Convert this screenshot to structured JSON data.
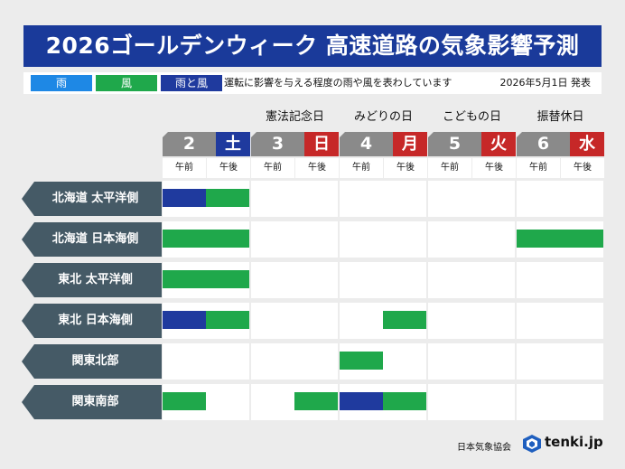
{
  "title": "2026ゴールデンウィーク 高速道路の気象影響予測",
  "legend": {
    "items": [
      {
        "label": "雨",
        "color": "#1e88e5"
      },
      {
        "label": "風",
        "color": "#1fa84b"
      },
      {
        "label": "雨と風",
        "color": "#1f3a9e"
      }
    ],
    "description": "運転に影響を与える程度の雨や風を表わしています",
    "issued": "2026年5月1日 発表"
  },
  "days": [
    {
      "num": "2",
      "weekday": "土",
      "weekday_color": "#1f3a9e",
      "holiday": "",
      "am": "午前",
      "pm": "午後"
    },
    {
      "num": "3",
      "weekday": "日",
      "weekday_color": "#c62828",
      "holiday": "憲法記念日",
      "am": "午前",
      "pm": "午後"
    },
    {
      "num": "4",
      "weekday": "月",
      "weekday_color": "#c62828",
      "holiday": "みどりの日",
      "am": "午前",
      "pm": "午後"
    },
    {
      "num": "5",
      "weekday": "火",
      "weekday_color": "#c62828",
      "holiday": "こどもの日",
      "am": "午前",
      "pm": "午後"
    },
    {
      "num": "6",
      "weekday": "水",
      "weekday_color": "#c62828",
      "holiday": "振替休日",
      "am": "午前",
      "pm": "午後"
    }
  ],
  "rows": [
    {
      "label": "北海道 太平洋側",
      "segments": [
        "rainwind",
        "wind",
        "",
        "",
        "",
        "",
        "",
        "",
        "",
        ""
      ]
    },
    {
      "label": "北海道 日本海側",
      "segments": [
        "wind",
        "wind",
        "",
        "",
        "",
        "",
        "",
        "",
        "wind",
        "wind"
      ]
    },
    {
      "label": "東北 太平洋側",
      "segments": [
        "wind",
        "wind",
        "",
        "",
        "",
        "",
        "",
        "",
        "",
        ""
      ]
    },
    {
      "label": "東北 日本海側",
      "segments": [
        "rainwind",
        "wind",
        "",
        "",
        "",
        "wind",
        "",
        "",
        "",
        ""
      ]
    },
    {
      "label": "関東北部",
      "segments": [
        "",
        "",
        "",
        "",
        "wind",
        "",
        "",
        "",
        "",
        ""
      ]
    },
    {
      "label": "関東南部",
      "segments": [
        "wind",
        "",
        "",
        "wind",
        "rainwind",
        "wind",
        "",
        "",
        "",
        ""
      ]
    }
  ],
  "footer": {
    "org": "日本気象協会",
    "logo_text": "tenki.jp"
  },
  "colors": {
    "rain": "#1e88e5",
    "wind": "#1fa84b",
    "rainwind": "#1f3a9e"
  }
}
